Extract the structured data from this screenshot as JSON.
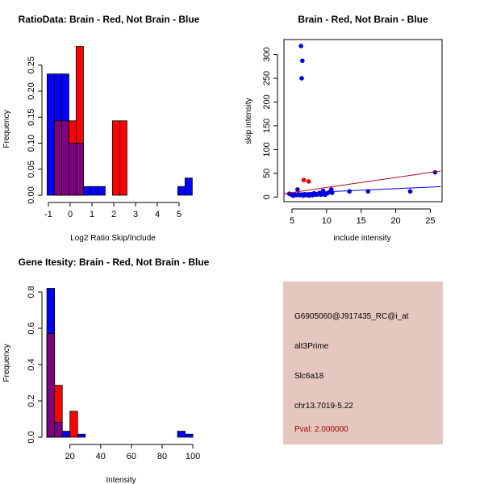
{
  "panel": {
    "background": "#e6c7c0",
    "probe_id": "G6905060@J917435_RC@i_at",
    "event_type": "alt3Prime",
    "gene": "Slc6a18",
    "location": "chr13.7019-5.22",
    "pval": "Pval: 2.000000",
    "pval_color": "#a00000"
  },
  "chart_data": [
    {
      "type": "bar",
      "subtype": "overlapping-histogram",
      "title": "RatioData: Brain - Red, Not Brain - Blue",
      "xlabel": "Log2 Ratio Skip/Include",
      "ylabel": "Frequency",
      "xlim": [
        -1.2,
        5.9
      ],
      "ylim": [
        0,
        0.29
      ],
      "xticks": [
        "-1",
        "0",
        "1",
        "2",
        "3",
        "4",
        "5"
      ],
      "yticks": [
        "0.00",
        "0.05",
        "0.10",
        "0.15",
        "0.20",
        "0.25"
      ],
      "bin_start": -1.06,
      "bin_width": 0.3333,
      "series": [
        {
          "name": "Not Brain",
          "color": "#0000ff",
          "values": [
            0.233,
            0.233,
            0.233,
            0.1,
            0.1,
            0.0167,
            0.0167,
            0.0167,
            0,
            0,
            0,
            0,
            0,
            0,
            0,
            0,
            0,
            0,
            0.0167,
            0.033
          ]
        },
        {
          "name": "Brain",
          "color": "#ff0000",
          "values": [
            0,
            0.143,
            0.143,
            0.143,
            0.286,
            0,
            0,
            0,
            0,
            0.143,
            0.143,
            0,
            0,
            0,
            0,
            0,
            0,
            0,
            0,
            0
          ]
        }
      ],
      "overlap_color": "#7f007f"
    },
    {
      "type": "scatter",
      "title": "Brain - Red, Not Brain - Blue",
      "xlabel": "include intensity",
      "ylabel": "skip intensity",
      "xlim": [
        3.8,
        26.5
      ],
      "ylim": [
        -12,
        330
      ],
      "xticks": [
        "5",
        "10",
        "15",
        "20",
        "25"
      ],
      "yticks": [
        "0",
        "50",
        "100",
        "150",
        "200",
        "250",
        "300"
      ],
      "series": [
        {
          "name": "Not Brain",
          "color": "#0000dd",
          "points": [
            [
              6.3,
              318
            ],
            [
              6.5,
              287
            ],
            [
              6.4,
              250
            ],
            [
              5.8,
              16
            ],
            [
              4.6,
              7
            ],
            [
              5.0,
              4
            ],
            [
              5.2,
              3
            ],
            [
              5.4,
              5
            ],
            [
              5.6,
              4
            ],
            [
              5.9,
              6
            ],
            [
              6.1,
              4
            ],
            [
              6.3,
              5
            ],
            [
              6.6,
              3
            ],
            [
              6.8,
              6
            ],
            [
              7.0,
              4
            ],
            [
              7.2,
              5
            ],
            [
              7.5,
              3
            ],
            [
              7.7,
              6
            ],
            [
              8.0,
              4
            ],
            [
              8.2,
              8
            ],
            [
              8.5,
              5
            ],
            [
              8.8,
              6
            ],
            [
              9.0,
              9
            ],
            [
              9.2,
              5
            ],
            [
              9.4,
              7
            ],
            [
              9.5,
              13
            ],
            [
              9.8,
              5
            ],
            [
              10.1,
              8
            ],
            [
              10.4,
              10
            ],
            [
              10.6,
              13
            ],
            [
              10.7,
              16
            ],
            [
              10.8,
              9
            ],
            [
              13.3,
              12
            ],
            [
              16.0,
              12
            ],
            [
              22.1,
              12
            ],
            [
              25.7,
              52
            ]
          ],
          "fit_line": [
            [
              3.8,
              7
            ],
            [
              26.5,
              22
            ]
          ]
        },
        {
          "name": "Brain",
          "color": "#ee0000",
          "points": [
            [
              6.7,
              36
            ],
            [
              7.4,
              33
            ]
          ],
          "fit_line": [
            [
              3.8,
              7
            ],
            [
              26.5,
              55
            ]
          ],
          "line_color": "#bb0022"
        }
      ]
    },
    {
      "type": "bar",
      "subtype": "overlapping-histogram",
      "title": "Gene Itesity: Brain - Red, Not Brain - Blue",
      "xlabel": "Intensity",
      "ylabel": "Frequency",
      "xlim": [
        0,
        105
      ],
      "ylim": [
        0,
        0.83
      ],
      "xticks": [
        "20",
        "40",
        "60",
        "80",
        "100"
      ],
      "yticks": [
        "0.0",
        "0.2",
        "0.4",
        "0.6",
        "0.8"
      ],
      "bin_start": 5,
      "bin_width": 5,
      "series": [
        {
          "name": "Not Brain",
          "color": "#0000ff",
          "values": [
            0.82,
            0.083,
            0.033,
            0,
            0.0167,
            0,
            0,
            0,
            0,
            0,
            0,
            0,
            0,
            0,
            0,
            0,
            0,
            0.033,
            0.0167
          ]
        },
        {
          "name": "Brain",
          "color": "#ff0000",
          "values": [
            0.571,
            0.286,
            0,
            0.143,
            0,
            0,
            0,
            0,
            0,
            0,
            0,
            0,
            0,
            0,
            0,
            0,
            0,
            0,
            0
          ]
        }
      ],
      "overlap_color": "#7f007f"
    }
  ]
}
